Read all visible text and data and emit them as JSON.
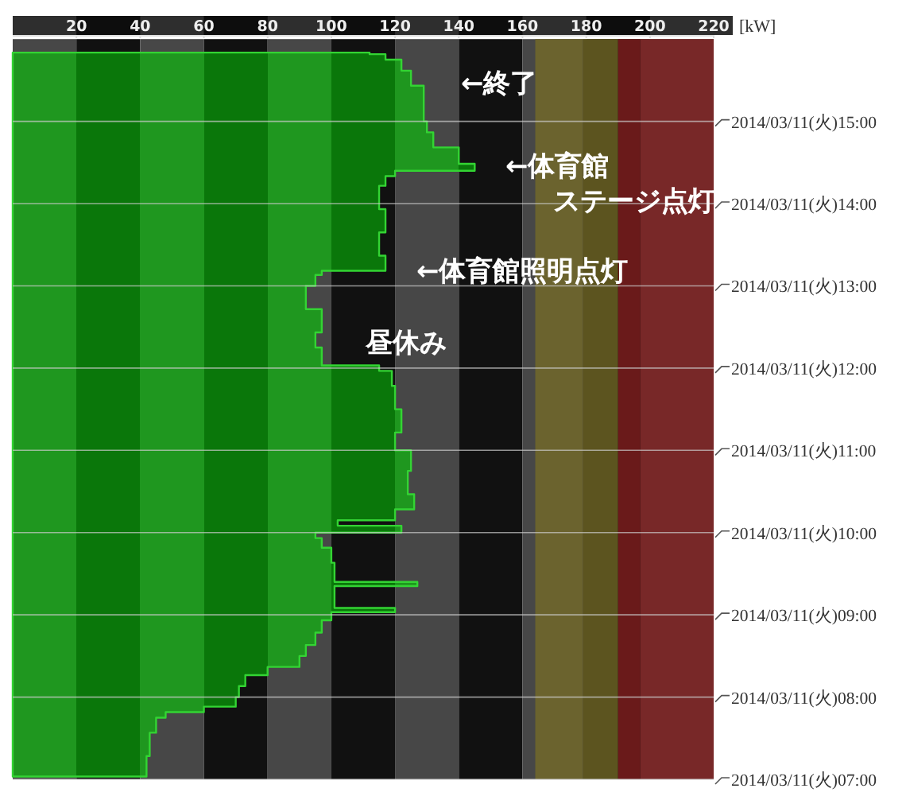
{
  "chart_data": {
    "type": "area",
    "orientation": "horizontal",
    "xlabel": "[kW]",
    "x": [
      "2014-03-11T07:02",
      "2014-03-11T07:17",
      "2014-03-11T07:34",
      "2014-03-11T07:45",
      "2014-03-11T07:49",
      "2014-03-11T07:53",
      "2014-03-11T08:00",
      "2014-03-11T08:08",
      "2014-03-11T08:16",
      "2014-03-11T08:22",
      "2014-03-11T08:30",
      "2014-03-11T08:38",
      "2014-03-11T08:47",
      "2014-03-11T08:56",
      "2014-03-11T09:02",
      "2014-03-11T09:05",
      "2014-03-11T09:15",
      "2014-03-11T09:21",
      "2014-03-11T09:24",
      "2014-03-11T09:38",
      "2014-03-11T09:49",
      "2014-03-11T09:56",
      "2014-03-11T10:00",
      "2014-03-11T10:05",
      "2014-03-11T10:09",
      "2014-03-11T10:17",
      "2014-03-11T10:28",
      "2014-03-11T10:45",
      "2014-03-11T11:00",
      "2014-03-11T11:13",
      "2014-03-11T11:30",
      "2014-03-11T11:47",
      "2014-03-11T11:58",
      "2014-03-11T12:02",
      "2014-03-11T12:15",
      "2014-03-11T12:26",
      "2014-03-11T12:43",
      "2014-03-11T13:00",
      "2014-03-11T13:08",
      "2014-03-11T13:11",
      "2014-03-11T13:22",
      "2014-03-11T13:39",
      "2014-03-11T13:56",
      "2014-03-11T14:13",
      "2014-03-11T14:20",
      "2014-03-11T14:24",
      "2014-03-11T14:29",
      "2014-03-11T14:41",
      "2014-03-11T14:52",
      "2014-03-11T15:00",
      "2014-03-11T15:14",
      "2014-03-11T15:26",
      "2014-03-11T15:37",
      "2014-03-11T15:45",
      "2014-03-11T15:49"
    ],
    "series": [
      {
        "color": "#33d433",
        "values": [
          42,
          43,
          45,
          48,
          60,
          70,
          71,
          73,
          80,
          90,
          92,
          95,
          97,
          100,
          120,
          101,
          101,
          127,
          101,
          100,
          97,
          95,
          122,
          102,
          120,
          126,
          124,
          125,
          120,
          122,
          120,
          119,
          115,
          97,
          95,
          97,
          92,
          95,
          97,
          117,
          115,
          117,
          115,
          117,
          120,
          145,
          140,
          132,
          130,
          129,
          129,
          125,
          122,
          117,
          112
        ]
      }
    ],
    "xlim": [
      0,
      220
    ],
    "xticks": [
      20,
      40,
      60,
      80,
      100,
      120,
      140,
      160,
      180,
      200,
      220
    ],
    "ylim": [
      "2014-03-11T07:00",
      "2014-03-11T16:00"
    ],
    "yticks": [
      {
        "value": "2014-03-11T07:00",
        "label": "2014/03/11(火)07:00"
      },
      {
        "value": "2014-03-11T08:00",
        "label": "2014/03/11(火)08:00"
      },
      {
        "value": "2014-03-11T09:00",
        "label": "2014/03/11(火)09:00"
      },
      {
        "value": "2014-03-11T10:00",
        "label": "2014/03/11(火)10:00"
      },
      {
        "value": "2014-03-11T11:00",
        "label": "2014/03/11(火)11:00"
      },
      {
        "value": "2014-03-11T12:00",
        "label": "2014/03/11(火)12:00"
      },
      {
        "value": "2014-03-11T13:00",
        "label": "2014/03/11(火)13:00"
      },
      {
        "value": "2014-03-11T14:00",
        "label": "2014/03/11(火)14:00"
      },
      {
        "value": "2014-03-11T15:00",
        "label": "2014/03/11(火)15:00"
      }
    ],
    "grid": true,
    "bands": [
      {
        "axis": "x",
        "from": 164,
        "to": 179,
        "color": "#6b632e"
      },
      {
        "axis": "x",
        "from": 179,
        "to": 190,
        "color": "#5c541f"
      },
      {
        "axis": "x",
        "from": 190,
        "to": 197,
        "color": "#6a1a1a"
      },
      {
        "axis": "x",
        "from": 197,
        "to": 220,
        "color": "#782828"
      }
    ],
    "annotations": [
      "←終了",
      "←体育館",
      "ステージ点灯",
      "←体育館照明点灯",
      "昼休み"
    ]
  }
}
